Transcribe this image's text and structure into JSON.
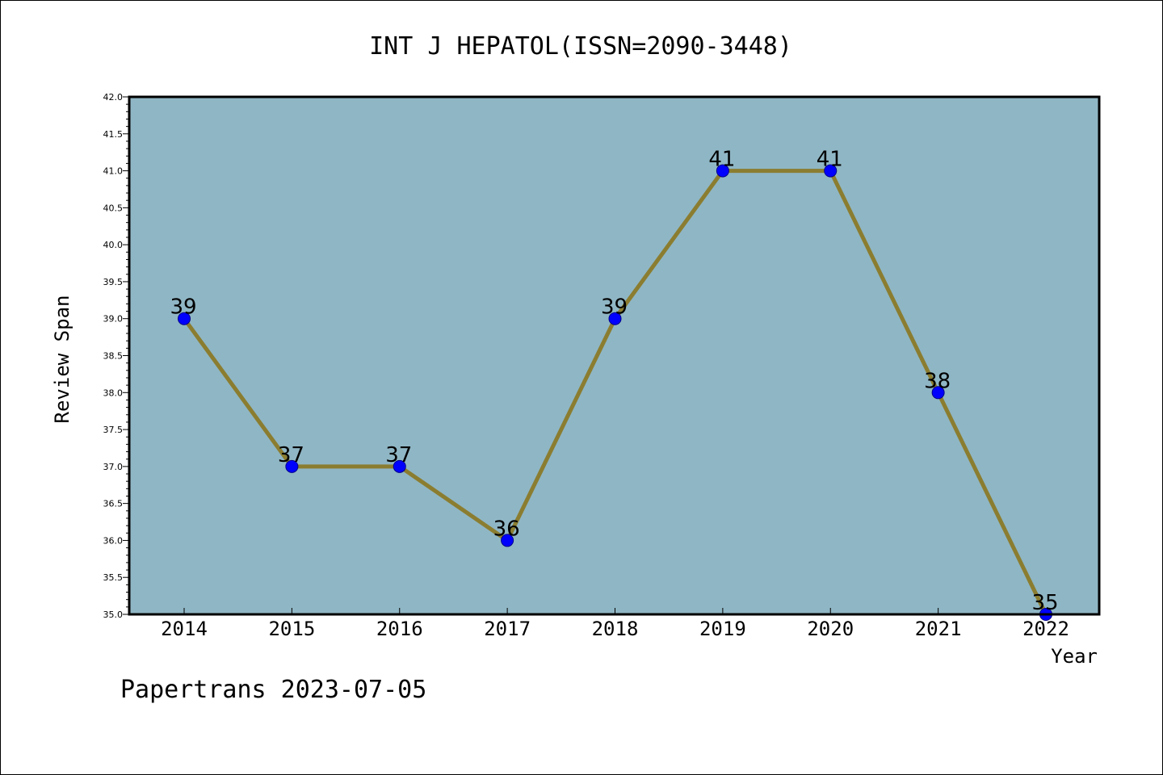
{
  "chart_data": {
    "type": "line",
    "title": "INT J HEPATOL(ISSN=2090-3448)",
    "xlabel": "Year",
    "ylabel": "Review Span",
    "categories": [
      "2014",
      "2015",
      "2016",
      "2017",
      "2018",
      "2019",
      "2020",
      "2021",
      "2022"
    ],
    "series": [
      {
        "values": [
          39,
          37,
          37,
          36,
          39,
          41,
          41,
          38,
          35
        ]
      }
    ],
    "data_labels": [
      "39",
      "37",
      "37",
      "36",
      "39",
      "41",
      "41",
      "38",
      "35"
    ],
    "ylim": [
      35.0,
      42.0
    ],
    "yticks": [
      "35.0",
      "35.5",
      "36.0",
      "36.5",
      "37.0",
      "37.5",
      "38.0",
      "38.5",
      "39.0",
      "39.5",
      "40.0",
      "40.5",
      "41.0",
      "41.5",
      "42.0"
    ],
    "grid": false,
    "legend": "none",
    "colors": {
      "plot_background": "#8fb6c4",
      "line": "#8b7d30",
      "marker": "#0000ff",
      "marker_edge": "#00008b"
    },
    "footer": "Papertrans 2023-07-05"
  }
}
